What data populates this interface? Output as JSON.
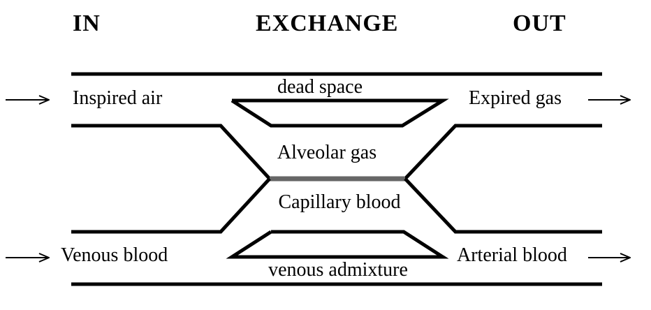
{
  "headings": {
    "in": "IN",
    "exchange": "EXCHANGE",
    "out": "OUT"
  },
  "labels": {
    "inspired_air": "Inspired air",
    "dead_space": "dead space",
    "expired_gas": "Expired gas",
    "alveolar_gas": "Alveolar gas",
    "capillary_blood": "Capillary blood",
    "venous_blood": "Venous blood",
    "venous_admixture": "venous admixture",
    "arterial_blood": "Arterial blood"
  },
  "icons": {
    "flow_arrow": "arrow-right-icon"
  },
  "colors": {
    "line": "#000000",
    "membrane": "#666666",
    "background": "#ffffff"
  }
}
